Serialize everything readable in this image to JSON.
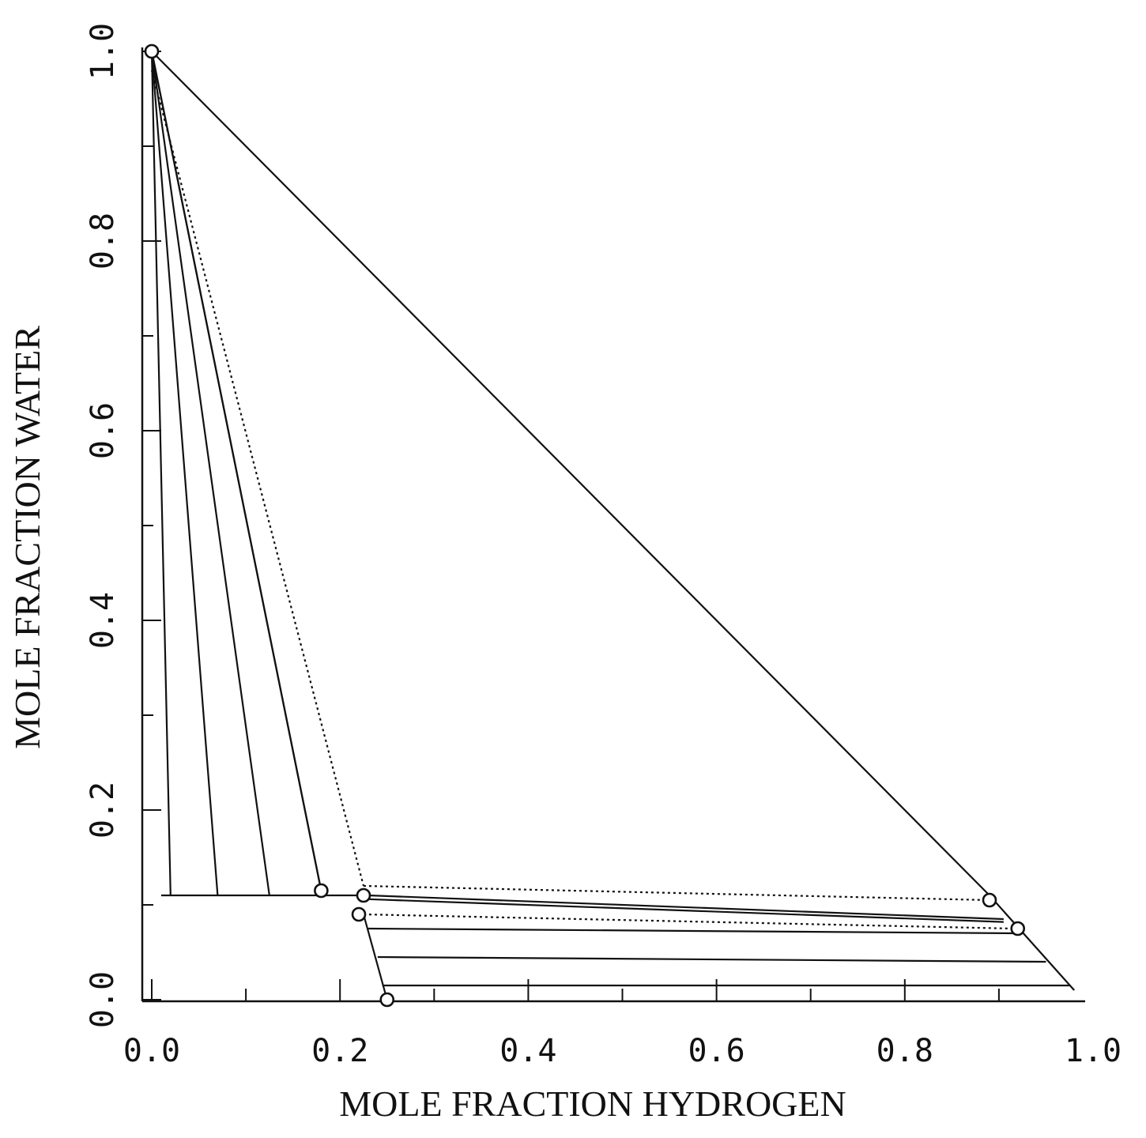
{
  "chart_data": {
    "type": "line",
    "title": "",
    "xlabel": "MOLE FRACTION HYDROGEN",
    "ylabel": "MOLE FRACTION WATER",
    "xlim": [
      0.0,
      1.0
    ],
    "ylim": [
      0.0,
      1.0
    ],
    "x_ticks": [
      "0.0",
      "0.2",
      "0.4",
      "0.6",
      "0.8",
      "1.0"
    ],
    "y_ticks": [
      "0.0",
      "0.2",
      "0.4",
      "0.6",
      "0.8",
      "1.0"
    ],
    "grid": false,
    "solid_lines": [
      {
        "x": [
          0.0,
          0.89
        ],
        "y": [
          1.0,
          0.11
        ]
      },
      {
        "x": [
          0.89,
          0.98
        ],
        "y": [
          0.11,
          0.01
        ]
      },
      {
        "x": [
          0.0,
          0.02
        ],
        "y": [
          1.0,
          0.11
        ]
      },
      {
        "x": [
          0.0,
          0.07
        ],
        "y": [
          1.0,
          0.11
        ]
      },
      {
        "x": [
          0.0,
          0.125
        ],
        "y": [
          1.0,
          0.11
        ]
      },
      {
        "x": [
          0.0,
          0.18
        ],
        "y": [
          1.0,
          0.115
        ]
      },
      {
        "x": [
          0.0,
          0.18
        ],
        "y": [
          1.0,
          0.115
        ]
      },
      {
        "x": [
          0.01,
          0.225
        ],
        "y": [
          0.11,
          0.11
        ]
      },
      {
        "x": [
          0.225,
          0.25
        ],
        "y": [
          0.09,
          0.0
        ]
      },
      {
        "x": [
          0.23,
          0.905
        ],
        "y": [
          0.11,
          0.085
        ]
      },
      {
        "x": [
          0.23,
          0.905
        ],
        "y": [
          0.106,
          0.082
        ]
      },
      {
        "x": [
          0.23,
          0.92
        ],
        "y": [
          0.075,
          0.07
        ]
      },
      {
        "x": [
          0.24,
          0.95
        ],
        "y": [
          0.045,
          0.04
        ]
      },
      {
        "x": [
          0.245,
          0.975
        ],
        "y": [
          0.015,
          0.015
        ]
      }
    ],
    "dotted_lines": [
      {
        "x": [
          0.0,
          0.225
        ],
        "y": [
          0.98,
          0.12
        ]
      },
      {
        "x": [
          0.225,
          0.89
        ],
        "y": [
          0.12,
          0.105
        ]
      },
      {
        "x": [
          0.225,
          0.915
        ],
        "y": [
          0.09,
          0.075
        ]
      }
    ],
    "marker_points": [
      {
        "x": 0.0,
        "y": 1.0
      },
      {
        "x": 0.18,
        "y": 0.115
      },
      {
        "x": 0.225,
        "y": 0.11
      },
      {
        "x": 0.22,
        "y": 0.09
      },
      {
        "x": 0.25,
        "y": 0.0
      },
      {
        "x": 0.89,
        "y": 0.105
      },
      {
        "x": 0.92,
        "y": 0.075
      }
    ]
  }
}
